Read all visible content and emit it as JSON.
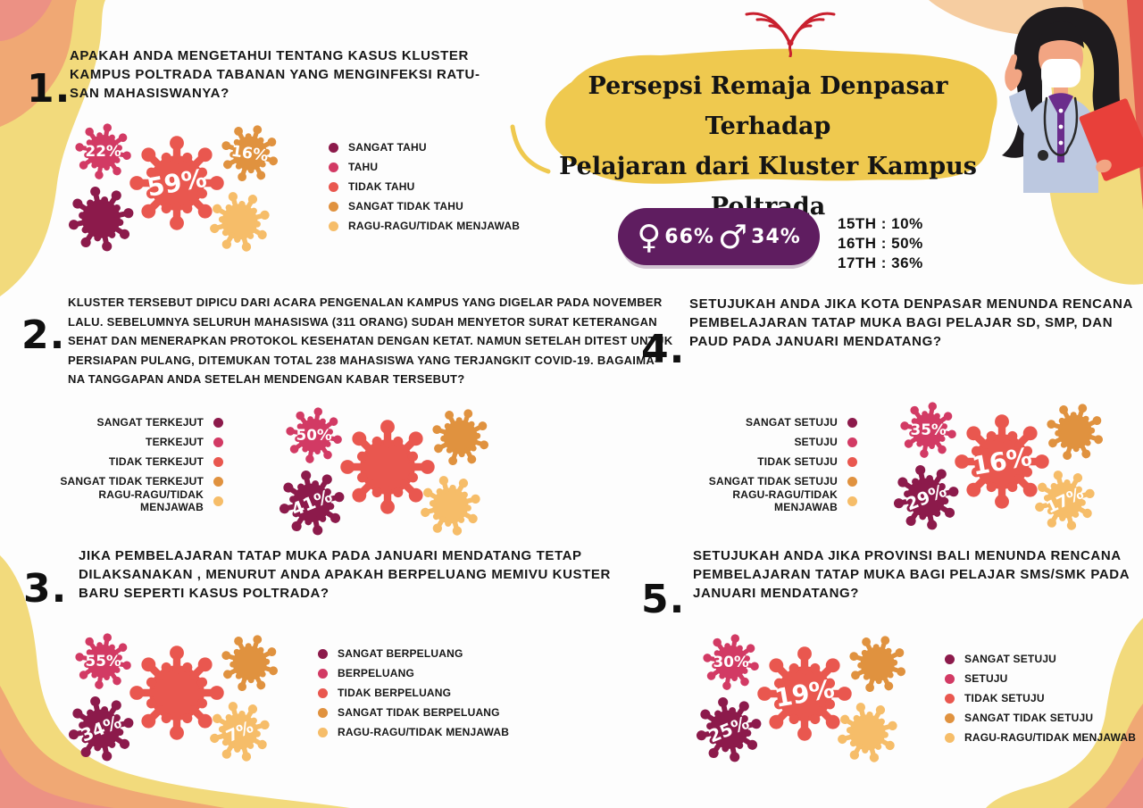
{
  "poster": {
    "title": "Persepsi Remaja Denpasar Terhadap\nPelajaran dari Kluster Kampus\nPoltrada",
    "logo_name": "red-phoenix-emblem"
  },
  "demographics": {
    "female_icon": "♀",
    "female_pct": "66%",
    "male_icon": "♂",
    "male_pct": "34%",
    "ages": [
      "15TH : 10%",
      "16TH : 50%",
      "17TH : 36%"
    ]
  },
  "colors": {
    "scale": [
      "#8C1A4B",
      "#D23A64",
      "#E9574F",
      "#E0923F",
      "#F6BD69"
    ],
    "pill_purple": "#5F1D60",
    "title_blob_yellow": "#EFC94F",
    "border_yellow": "#F2DA7C",
    "border_orange": "#F0A874",
    "border_salmon": "#EC9184",
    "corner_red": "#E4574E",
    "corner_peach": "#F6CDA1",
    "text_black": "#161616"
  },
  "questions": [
    {
      "number": "1.",
      "text": "APAKAH ANDA MENGETAHUI TENTANG KASUS KLUSTER\nKAMPUS POLTRADA TABANAN YANG MENGINFEKSI RATU-\nSAN MAHASISWANYA?"
    },
    {
      "number": "2.",
      "text": "KLUSTER TERSEBUT DIPICU DARI ACARA PENGENALAN KAMPUS YANG DIGELAR PADA NOVEMBER\nLALU. SEBELUMNYA SELURUH MAHASISWA (311 ORANG) SUDAH MENYETOR SURAT KETERANGAN\nSEHAT DAN MENERAPKAN PROTOKOL KESEHATAN DENGAN KETAT. NAMUN SETELAH DITEST UNTUK\nPERSIAPAN PULANG, DITEMUKAN TOTAL 238 MAHASISWA YANG TERJANGKIT COVID-19. BAGAIMA-\nNA TANGGAPAN ANDA SETELAH MENDENGAN KABAR TERSEBUT?"
    },
    {
      "number": "3.",
      "text": "JIKA PEMBELAJARAN TATAP MUKA PADA JANUARI MENDATANG TETAP\nDILAKSANAKAN , MENURUT ANDA APAKAH BERPELUANG MEMIVU KUSTER\nBARU SEPERTI KASUS POLTRADA?"
    },
    {
      "number": "4.",
      "text": "SETUJUKAH ANDA JIKA KOTA DENPASAR MENUNDA RENCANA\nPEMBELAJARAN TATAP MUKA BAGI PELAJAR SD, SMP, DAN\nPAUD PADA JANUARI MENDATANG?"
    },
    {
      "number": "5.",
      "text": "SETUJUKAH ANDA JIKA PROVINSI BALI MENUNDA RENCANA\nPEMBELAJARAN TATAP MUKA BAGI PELAJAR SMS/SMK PADA\nJANUARI MENDATANG?"
    }
  ],
  "chart_data": [
    {
      "type": "bubble",
      "question": "1",
      "title": "APAKAH ANDA MENGETAHUI TENTANG KASUS KLUSTER KAMPUS POLTRADA TABANAN YANG MENGINFEKSI RATUSAN MAHASISWANYA?",
      "categories": [
        "SANGAT TAHU",
        "TAHU",
        "TIDAK TAHU",
        "SANGAT TIDAK TAHU",
        "RAGU-RAGU/TIDAK MENJAWAB"
      ],
      "values_pct": [
        null,
        22,
        59,
        16,
        null
      ],
      "unit": "%",
      "legend_position": "right"
    },
    {
      "type": "bubble",
      "question": "2",
      "title": "BAGAIMANA TANGGAPAN ANDA SETELAH MENDENGAR KABAR TERSEBUT?",
      "categories": [
        "SANGAT TERKEJUT",
        "TERKEJUT",
        "TIDAK TERKEJUT",
        "SANGAT TIDAK TERKEJUT",
        "RAGU-RAGU/TIDAK MENJAWAB"
      ],
      "values_pct": [
        41,
        50,
        null,
        null,
        null
      ],
      "unit": "%",
      "legend_position": "left"
    },
    {
      "type": "bubble",
      "question": "3",
      "title": "APAKAH BERPELUANG MEMICU KLUSTER BARU SEPERTI KASUS POLTRADA?",
      "categories": [
        "SANGAT BERPELUANG",
        "BERPELUANG",
        "TIDAK BERPELUANG",
        "SANGAT TIDAK BERPELUANG",
        "RAGU-RAGU/TIDAK MENJAWAB"
      ],
      "values_pct": [
        34,
        55,
        null,
        null,
        7
      ],
      "unit": "%",
      "legend_position": "right"
    },
    {
      "type": "bubble",
      "question": "4",
      "title": "SETUJUKAH ANDA JIKA KOTA DENPASAR MENUNDA RENCANA PEMBELAJARAN TATAP MUKA BAGI PELAJAR SD, SMP, DAN PAUD PADA JANUARI MENDATANG?",
      "categories": [
        "SANGAT SETUJU",
        "SETUJU",
        "TIDAK SETUJU",
        "SANGAT TIDAK SETUJU",
        "RAGU-RAGU/TIDAK MENJAWAB"
      ],
      "values_pct": [
        29,
        35,
        16,
        null,
        17
      ],
      "unit": "%",
      "legend_position": "left"
    },
    {
      "type": "bubble",
      "question": "5",
      "title": "SETUJUKAH ANDA JIKA PROVINSI BALI MENUNDA RENCANA PEMBELAJARAN TATAP MUKA BAGI PELAJAR SMS/SMK PADA JANUARI MENDATANG?",
      "categories": [
        "SANGAT SETUJU",
        "SETUJU",
        "TIDAK SETUJU",
        "SANGAT TIDAK SETUJU",
        "RAGU-RAGU/TIDAK MENJAWAB"
      ],
      "values_pct": [
        25,
        30,
        19,
        null,
        null
      ],
      "unit": "%",
      "legend_position": "right"
    }
  ]
}
